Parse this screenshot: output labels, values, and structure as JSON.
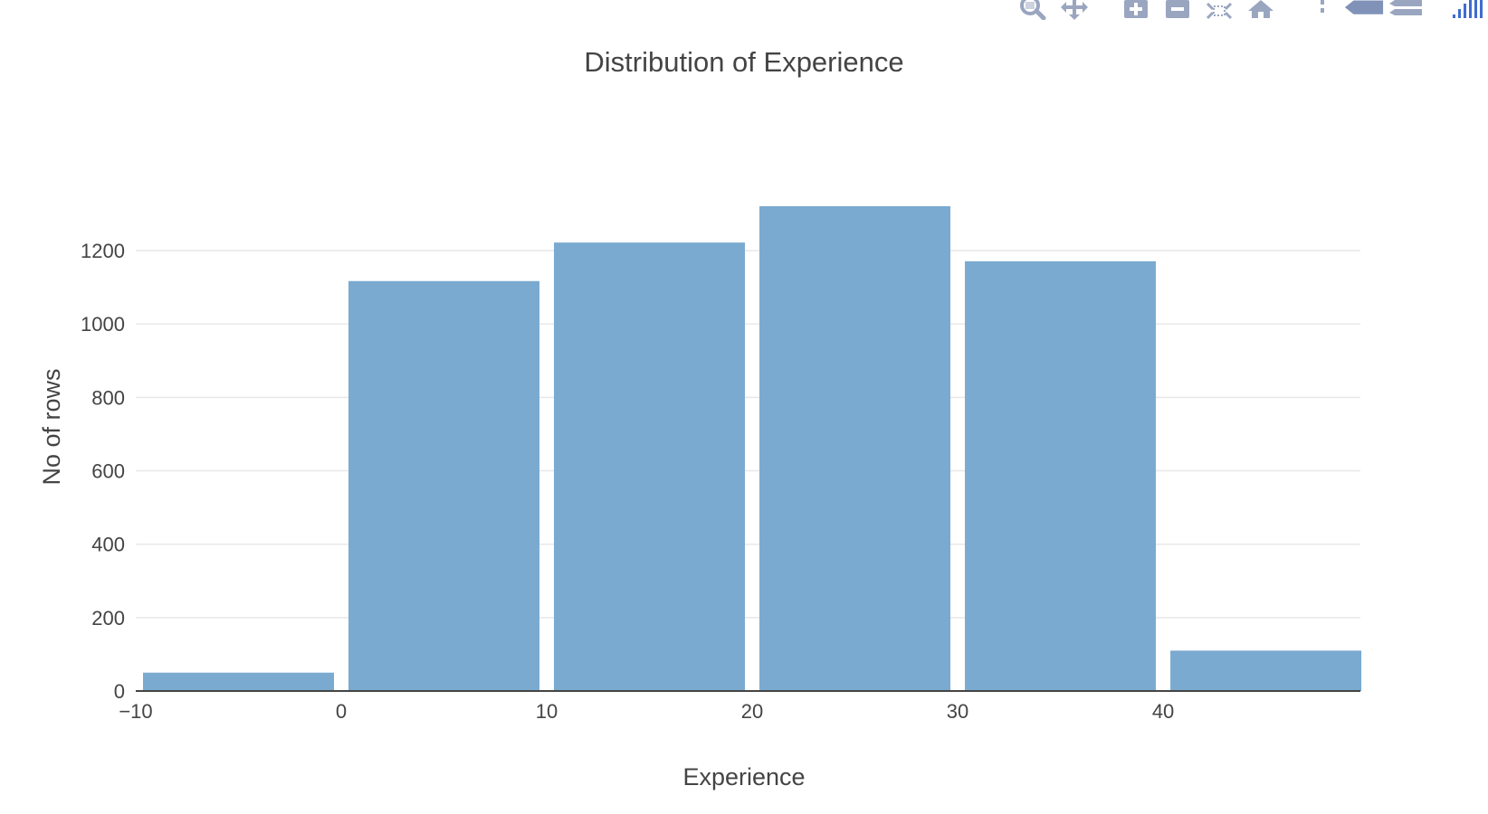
{
  "modebar": {
    "buttons": [
      {
        "name": "zoom-icon",
        "title": "Zoom"
      },
      {
        "name": "pan-icon",
        "title": "Pan"
      },
      {
        "name": "zoom-in-icon",
        "title": "Zoom in"
      },
      {
        "name": "zoom-out-icon",
        "title": "Zoom out"
      },
      {
        "name": "autoscale-icon",
        "title": "Autoscale"
      },
      {
        "name": "reset-axes-icon",
        "title": "Reset axes"
      },
      {
        "name": "spike-lines-icon",
        "title": "Toggle Spike Lines"
      },
      {
        "name": "hover-closest-icon",
        "title": "Show closest data on hover"
      },
      {
        "name": "hover-compare-icon",
        "title": "Compare data on hover"
      },
      {
        "name": "plotly-logo-icon",
        "title": "Produced with Plotly"
      }
    ],
    "icon_color": "#9aa6c0",
    "logo_color": "#3f6ccf"
  },
  "chart_data": {
    "type": "bar",
    "title": "Distribution of Experience",
    "xlabel": "Experience",
    "ylabel": "No of rows",
    "bin_size": 10,
    "bins": [
      {
        "start": -10,
        "end": 0,
        "count": 50
      },
      {
        "start": 0,
        "end": 10,
        "count": 1117
      },
      {
        "start": 10,
        "end": 20,
        "count": 1222
      },
      {
        "start": 20,
        "end": 30,
        "count": 1321
      },
      {
        "start": 30,
        "end": 40,
        "count": 1171
      },
      {
        "start": 40,
        "end": 50,
        "count": 110
      }
    ],
    "xticks": [
      "−10",
      "0",
      "10",
      "20",
      "30",
      "40"
    ],
    "xtick_values": [
      -10,
      0,
      10,
      20,
      30,
      40
    ],
    "yticks": [
      "0",
      "200",
      "400",
      "600",
      "800",
      "1000",
      "1200"
    ],
    "ytick_values": [
      0,
      200,
      400,
      600,
      800,
      1000,
      1200
    ],
    "xlim": [
      -10,
      49.6
    ],
    "ylim": [
      0,
      1390
    ],
    "grid": true,
    "bar_color": "#7aaad0"
  }
}
